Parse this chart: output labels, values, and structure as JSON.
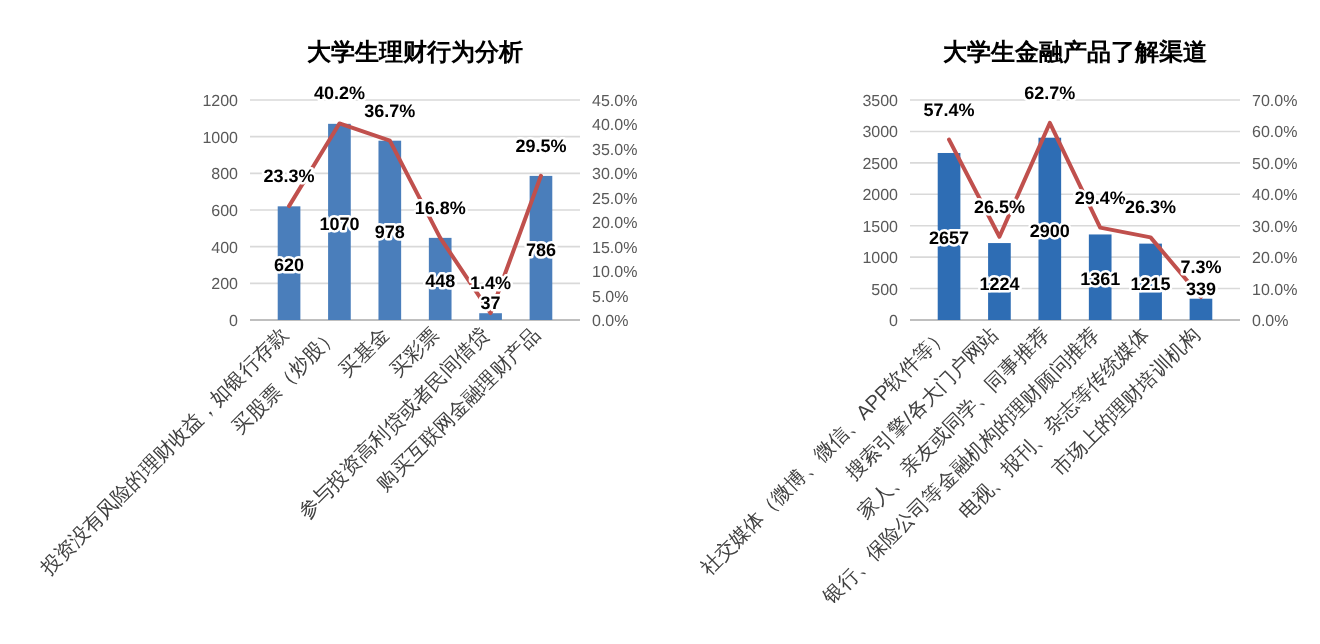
{
  "chart_data": [
    {
      "type": "bar",
      "title": "大学生理财行为分析",
      "categories": [
        "投资没有风险的理财收益，如银行存款",
        "买股票（炒股）",
        "买基金",
        "买彩票",
        "参与投资高利贷或者民间借贷",
        "购买互联网金融理财产品"
      ],
      "series": [
        {
          "color": "#4a7ebb",
          "values": [
            620,
            1070,
            978,
            448,
            37,
            786
          ]
        },
        {
          "type": "line",
          "axis": "y2",
          "color": "#c0504d",
          "values": [
            23.3,
            40.2,
            36.7,
            16.8,
            1.4,
            29.5
          ],
          "value_labels": [
            "23.3%",
            "40.2%",
            "36.7%",
            "16.8%",
            "1.4%",
            "29.5%"
          ]
        }
      ],
      "ylim": [
        0,
        1200
      ],
      "yticks": [
        0,
        200,
        400,
        600,
        800,
        1000,
        1200
      ],
      "y2lim": [
        0,
        45
      ],
      "y2ticks": [
        {
          "value": 0,
          "label": "0.0%"
        },
        {
          "value": 5,
          "label": "5.0%"
        },
        {
          "value": 10,
          "label": "10.0%"
        },
        {
          "value": 15,
          "label": "15.0%"
        },
        {
          "value": 20,
          "label": "20.0%"
        },
        {
          "value": 25,
          "label": "25.0%"
        },
        {
          "value": 30,
          "label": "30.0%"
        },
        {
          "value": 35,
          "label": "35.0%"
        },
        {
          "value": 40,
          "label": "40.0%"
        },
        {
          "value": 45,
          "label": "45.0%"
        }
      ],
      "grid": "y",
      "data_labels": true,
      "marker": "none"
    },
    {
      "type": "bar",
      "title": "大学生金融产品了解渠道",
      "categories": [
        "社交媒体（微博、微信、APP软件等）",
        "搜索引擎/各大门户网站",
        "家人、亲友或同学、同事推荐",
        "银行、保险公司等金融机构的理财顾问推荐",
        "电视、报刊、杂志等传统媒体",
        "市场上的理财培训机构"
      ],
      "series": [
        {
          "color": "#2e6db4",
          "values": [
            2657,
            1224,
            2900,
            1361,
            1215,
            339
          ]
        },
        {
          "type": "line",
          "axis": "y2",
          "color": "#c0504d",
          "values": [
            57.4,
            26.5,
            62.7,
            29.4,
            26.3,
            7.3
          ],
          "value_labels": [
            "57.4%",
            "26.5%",
            "62.7%",
            "29.4%",
            "26.3%",
            "7.3%"
          ]
        }
      ],
      "ylim": [
        0,
        3500
      ],
      "yticks": [
        0,
        500,
        1000,
        1500,
        2000,
        2500,
        3000,
        3500
      ],
      "y2lim": [
        0,
        70
      ],
      "y2ticks": [
        {
          "value": 0,
          "label": "0.0%"
        },
        {
          "value": 10,
          "label": "10.0%"
        },
        {
          "value": 20,
          "label": "20.0%"
        },
        {
          "value": 30,
          "label": "30.0%"
        },
        {
          "value": 40,
          "label": "40.0%"
        },
        {
          "value": 50,
          "label": "50.0%"
        },
        {
          "value": 60,
          "label": "60.0%"
        },
        {
          "value": 70,
          "label": "70.0%"
        }
      ],
      "grid": "y",
      "data_labels": true,
      "marker": "none"
    }
  ]
}
